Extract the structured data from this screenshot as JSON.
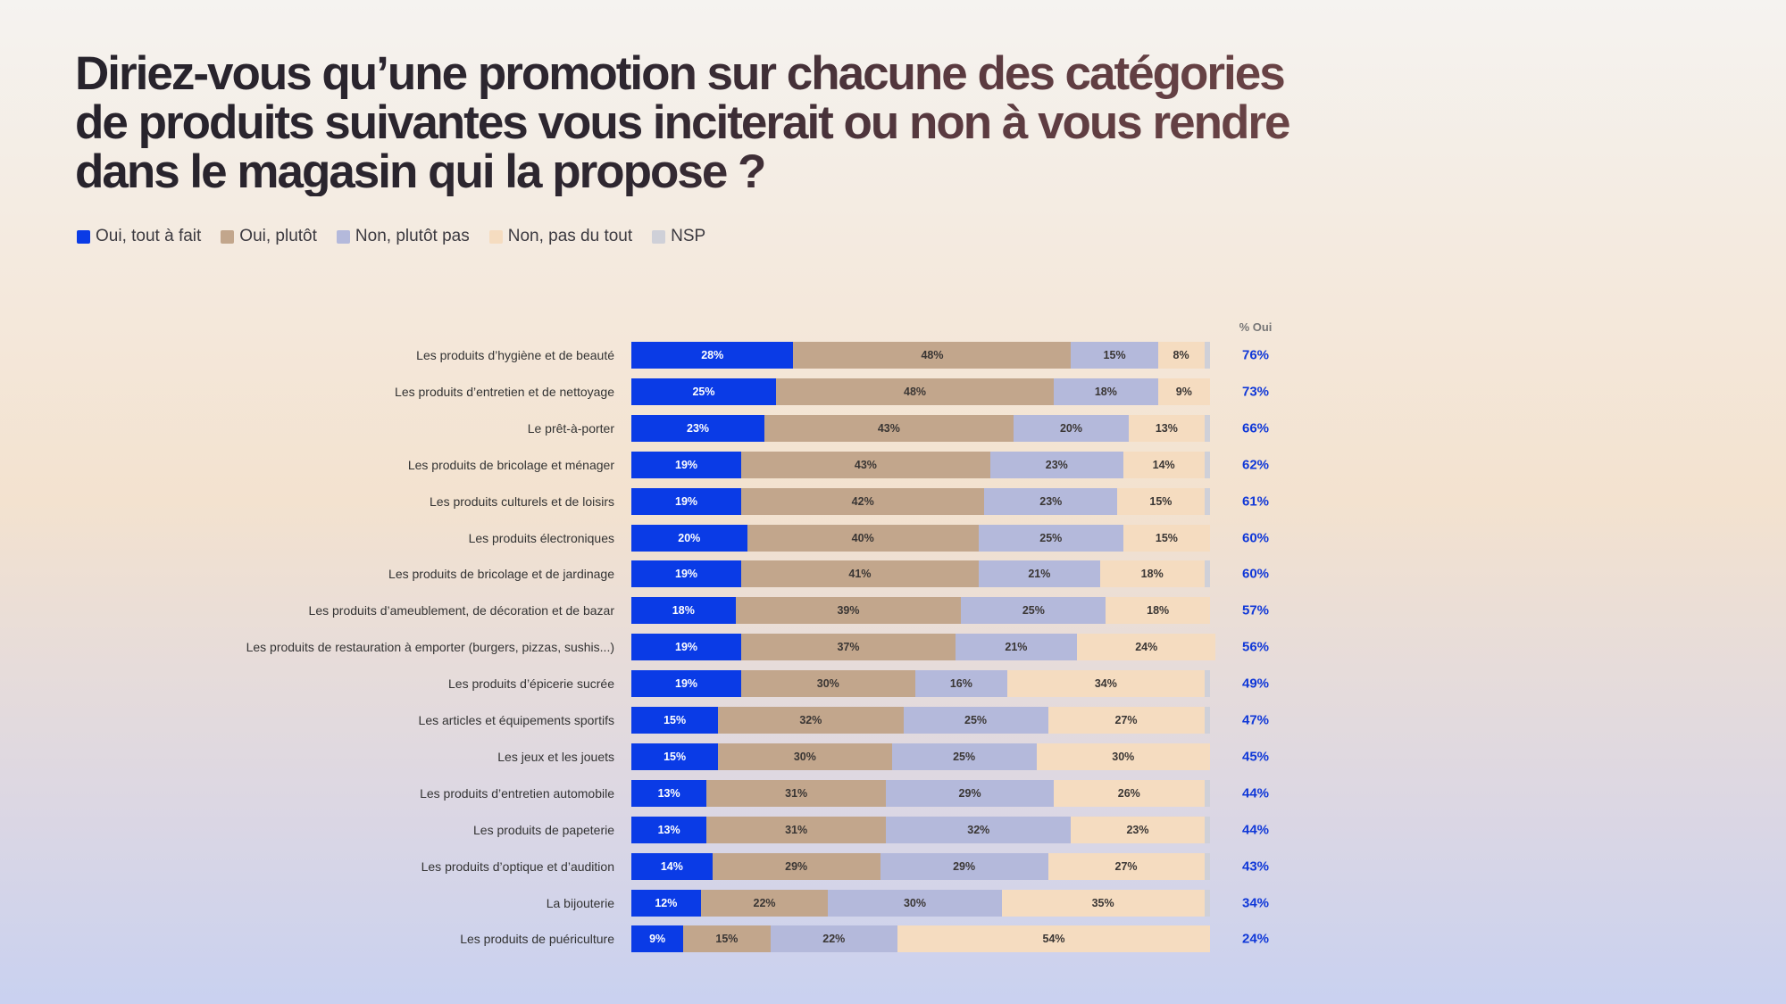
{
  "chart_data": {
    "type": "bar",
    "orientation": "horizontal-stacked-100",
    "title": "Diriez-vous qu’une promotion sur chacune des catégories de produits suivantes vous inciterait ou non à vous rendre dans le magasin qui la propose ?",
    "legend_position": "top-left",
    "oui_header": "% Oui",
    "series": [
      {
        "name": "Oui, tout à fait",
        "color": "#0a3be6"
      },
      {
        "name": "Oui, plutôt",
        "color": "#c2a68c"
      },
      {
        "name": "Non, plutôt pas",
        "color": "#b4b9db"
      },
      {
        "name": "Non, pas du tout",
        "color": "#f5dcc0"
      },
      {
        "name": "NSP",
        "color": "#cfd0d8"
      }
    ],
    "categories": [
      "Les produits d’hygiène et de beauté",
      "Les produits d’entretien et de nettoyage",
      "Le prêt-à-porter",
      "Les produits de bricolage et ménager",
      "Les produits culturels et de loisirs",
      "Les produits électroniques",
      "Les produits de bricolage et de jardinage",
      "Les produits d’ameublement, de décoration et de bazar",
      "Les produits de restauration à emporter (burgers, pizzas, sushis...)",
      "Les produits d’épicerie sucrée",
      "Les articles et équipements sportifs",
      "Les jeux et les jouets",
      "Les produits d’entretien automobile",
      "Les produits de papeterie",
      "Les produits d’optique et d’audition",
      "La bijouterie",
      "Les produits de puériculture"
    ],
    "values": [
      [
        28,
        48,
        15,
        8
      ],
      [
        25,
        48,
        18,
        9
      ],
      [
        23,
        43,
        20,
        13
      ],
      [
        19,
        43,
        23,
        14
      ],
      [
        19,
        42,
        23,
        15
      ],
      [
        20,
        40,
        25,
        15
      ],
      [
        19,
        41,
        21,
        18
      ],
      [
        18,
        39,
        25,
        18
      ],
      [
        19,
        37,
        21,
        24
      ],
      [
        19,
        30,
        16,
        34
      ],
      [
        15,
        32,
        25,
        27
      ],
      [
        15,
        30,
        25,
        30
      ],
      [
        13,
        31,
        29,
        26
      ],
      [
        13,
        31,
        32,
        23
      ],
      [
        14,
        29,
        29,
        27
      ],
      [
        12,
        22,
        30,
        35
      ],
      [
        9,
        15,
        22,
        54
      ]
    ],
    "oui_total": [
      "76%",
      "73%",
      "66%",
      "62%",
      "61%",
      "60%",
      "60%",
      "57%",
      "56%",
      "49%",
      "47%",
      "45%",
      "44%",
      "44%",
      "43%",
      "34%",
      "24%"
    ]
  }
}
